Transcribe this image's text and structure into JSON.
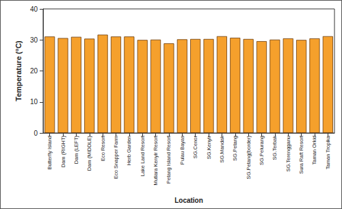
{
  "chart_data": {
    "type": "bar",
    "x_label": "Location",
    "y_label": "Temperature (°C)",
    "categories": [
      "Butterfly Island",
      "Dam (RIGHT)",
      "Dam (LEFT)",
      "Dam (MIDDLE)",
      "Eco Resort",
      "Eco Snapper Farm",
      "Herb Garden",
      "Lake Land Resort",
      "Mutiara Kenyir Resort",
      "Petang Island Resort",
      "Pulau Bayas",
      "SG.Cenor",
      "SG.Kenyir",
      "SG.Mandak",
      "SG.Petang",
      "SG.Petang(border)",
      "SG.Pelurang",
      "SG.Terbak",
      "SG.Terengganu",
      "Sura Raft Resort",
      "Taman Orkid",
      "Taman Tropika"
    ],
    "values": [
      31.1,
      30.6,
      31.0,
      30.4,
      31.7,
      31.1,
      31.1,
      30.0,
      30.1,
      28.9,
      30.2,
      30.3,
      30.3,
      31.2,
      30.7,
      30.3,
      29.6,
      30.1,
      30.5,
      30.0,
      30.5,
      31.2
    ],
    "color": "#f5a02c",
    "ylim": [
      0,
      40
    ],
    "yticks": [
      0,
      10,
      20,
      30,
      40
    ],
    "grid": false
  }
}
